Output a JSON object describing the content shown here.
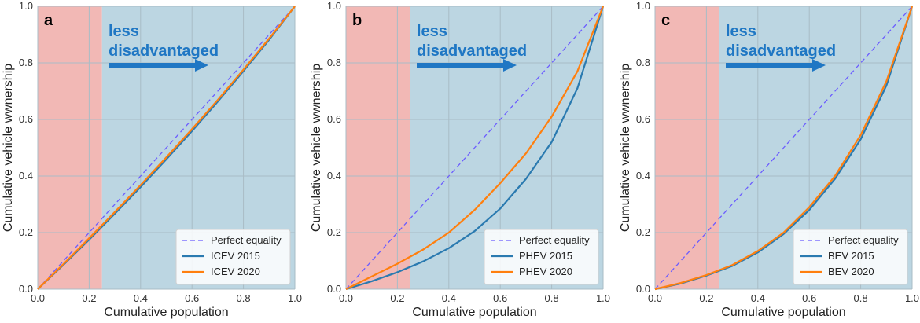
{
  "colors": {
    "disadvantaged_region": "#f2b8b5",
    "less_disadvantaged_region": "#bcd6e2",
    "grid": "#a9bcc6",
    "perfect_equality": "#6b5cff",
    "series_2015": "#2a7ab0",
    "series_2020": "#ff7f0e",
    "annotation": "#1f77c4"
  },
  "shared": {
    "xlabel": "Cumulative population",
    "ylabel": "Cumulative vehicle wwnership",
    "annotation_line1": "less",
    "annotation_line2": "disadvantaged",
    "annotation_arrow": "right-arrow"
  },
  "chart_data": [
    {
      "panel": "a",
      "type": "line",
      "xlim": [
        0,
        1
      ],
      "ylim": [
        0,
        1
      ],
      "x_ticks": [
        "0.0",
        "0.2",
        "0.4",
        "0.6",
        "0.8",
        "1.0"
      ],
      "y_ticks": [
        "0.0",
        "0.2",
        "0.4",
        "0.6",
        "0.8",
        "1.0"
      ],
      "grid": true,
      "legend_position": "lower-right",
      "shaded_regions": [
        {
          "x_from": 0,
          "x_to": 0.25,
          "label": "disadvantaged"
        },
        {
          "x_from": 0.25,
          "x_to": 1,
          "label": "less disadvantaged"
        }
      ],
      "x": [
        0,
        0.1,
        0.2,
        0.3,
        0.4,
        0.5,
        0.6,
        0.7,
        0.8,
        0.9,
        1.0
      ],
      "series": [
        {
          "name": "Perfect equality",
          "style": "dashed",
          "values": [
            0,
            0.1,
            0.2,
            0.3,
            0.4,
            0.5,
            0.6,
            0.7,
            0.8,
            0.9,
            1.0
          ]
        },
        {
          "name": "ICEV 2015",
          "values": [
            0,
            0.086,
            0.175,
            0.267,
            0.361,
            0.459,
            0.559,
            0.663,
            0.771,
            0.882,
            1.0
          ]
        },
        {
          "name": "ICEV 2020",
          "values": [
            0,
            0.089,
            0.18,
            0.273,
            0.368,
            0.466,
            0.566,
            0.669,
            0.776,
            0.886,
            1.0
          ]
        }
      ]
    },
    {
      "panel": "b",
      "type": "line",
      "xlim": [
        0,
        1
      ],
      "ylim": [
        0,
        1
      ],
      "x_ticks": [
        "0.0",
        "0.2",
        "0.4",
        "0.6",
        "0.8",
        "1.0"
      ],
      "y_ticks": [
        "0.0",
        "0.2",
        "0.4",
        "0.6",
        "0.8",
        "1.0"
      ],
      "grid": true,
      "legend_position": "lower-right",
      "shaded_regions": [
        {
          "x_from": 0,
          "x_to": 0.25,
          "label": "disadvantaged"
        },
        {
          "x_from": 0.25,
          "x_to": 1,
          "label": "less disadvantaged"
        }
      ],
      "x": [
        0,
        0.1,
        0.2,
        0.3,
        0.4,
        0.5,
        0.6,
        0.7,
        0.8,
        0.9,
        1.0
      ],
      "series": [
        {
          "name": "Perfect equality",
          "style": "dashed",
          "values": [
            0,
            0.1,
            0.2,
            0.3,
            0.4,
            0.5,
            0.6,
            0.7,
            0.8,
            0.9,
            1.0
          ]
        },
        {
          "name": "PHEV 2015",
          "values": [
            0,
            0.028,
            0.06,
            0.098,
            0.145,
            0.205,
            0.285,
            0.39,
            0.52,
            0.71,
            1.0
          ]
        },
        {
          "name": "PHEV 2020",
          "values": [
            0,
            0.045,
            0.09,
            0.14,
            0.2,
            0.28,
            0.375,
            0.48,
            0.61,
            0.77,
            1.0
          ]
        }
      ]
    },
    {
      "panel": "c",
      "type": "line",
      "xlim": [
        0,
        1
      ],
      "ylim": [
        0,
        1
      ],
      "x_ticks": [
        "0.0",
        "0.2",
        "0.4",
        "0.6",
        "0.8",
        "1.0"
      ],
      "y_ticks": [
        "0.0",
        "0.2",
        "0.4",
        "0.6",
        "0.8",
        "1.0"
      ],
      "grid": true,
      "legend_position": "lower-right",
      "shaded_regions": [
        {
          "x_from": 0,
          "x_to": 0.25,
          "label": "disadvantaged"
        },
        {
          "x_from": 0.25,
          "x_to": 1,
          "label": "less disadvantaged"
        }
      ],
      "x": [
        0,
        0.1,
        0.2,
        0.3,
        0.4,
        0.5,
        0.6,
        0.7,
        0.8,
        0.9,
        1.0
      ],
      "series": [
        {
          "name": "Perfect equality",
          "style": "dashed",
          "values": [
            0,
            0.1,
            0.2,
            0.3,
            0.4,
            0.5,
            0.6,
            0.7,
            0.8,
            0.9,
            1.0
          ]
        },
        {
          "name": "BEV 2015",
          "values": [
            0,
            0.02,
            0.048,
            0.082,
            0.13,
            0.195,
            0.28,
            0.39,
            0.53,
            0.72,
            1.0
          ]
        },
        {
          "name": "BEV 2020",
          "values": [
            0,
            0.022,
            0.05,
            0.085,
            0.135,
            0.2,
            0.29,
            0.4,
            0.545,
            0.735,
            1.0
          ]
        }
      ]
    }
  ]
}
